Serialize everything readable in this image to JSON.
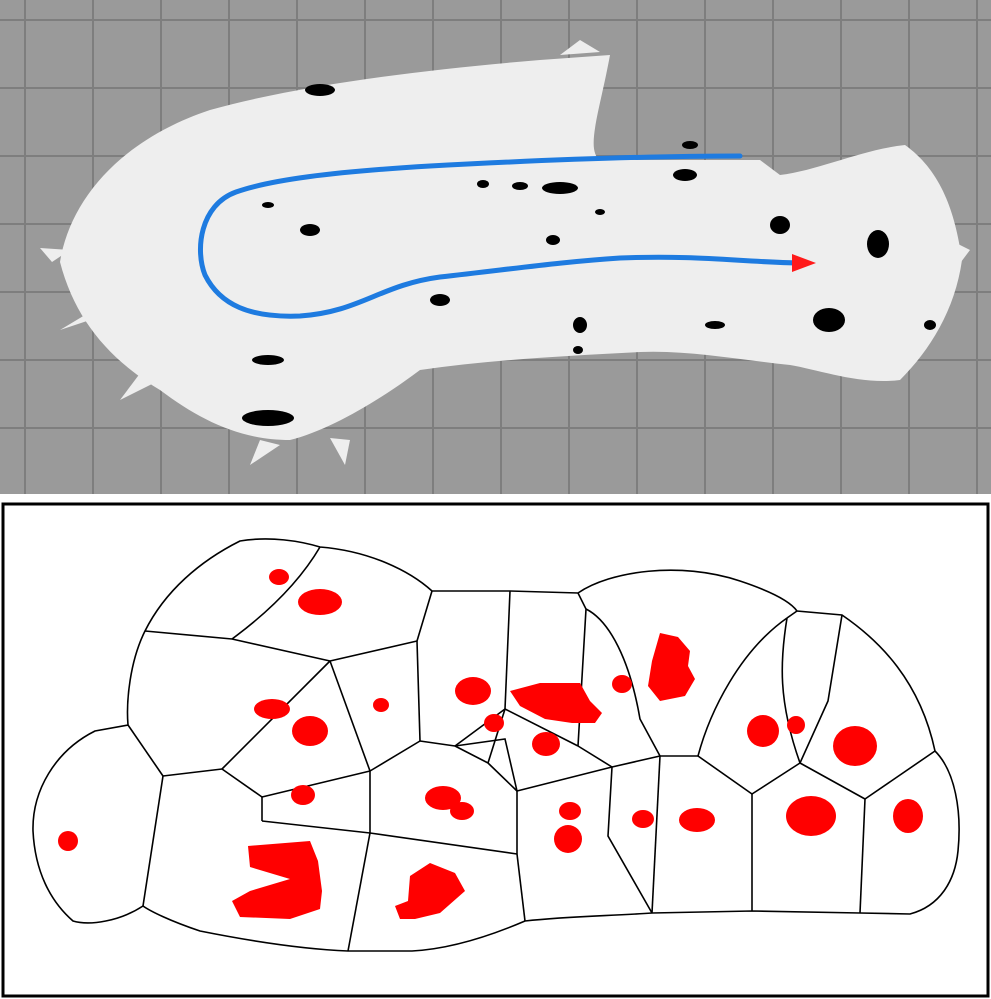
{
  "figure": {
    "panels": [
      {
        "id": "occupancy-map",
        "description_visible": false,
        "colors": {
          "background_grid": "#9a9a9a",
          "grid_lines": "#7e7e7e",
          "free_space": "#eeeeee",
          "obstacles": "#000000",
          "robot_path": "#1e7be0",
          "path_end_arrow": "#ff1a1a"
        },
        "elements": [
          "grid",
          "free-space-map",
          "obstacle-blobs",
          "robot-trajectory",
          "end-arrow-marker"
        ]
      },
      {
        "id": "voronoi-segmentation",
        "colors": {
          "background": "#ffffff",
          "border": "#000000",
          "cell_edges": "#000000",
          "features": "#ff0000"
        },
        "elements": [
          "voronoi-cells",
          "red-feature-blobs"
        ]
      }
    ]
  }
}
